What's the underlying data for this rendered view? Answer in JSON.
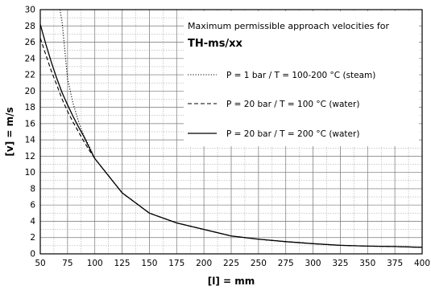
{
  "chart_data": {
    "type": "line",
    "xlabel": "[l] = mm",
    "ylabel": "[v] = m/s",
    "xlim": [
      50,
      400
    ],
    "ylim": [
      0,
      30
    ],
    "x_ticks": [
      50,
      75,
      100,
      125,
      150,
      175,
      200,
      225,
      250,
      275,
      300,
      325,
      350,
      375,
      400
    ],
    "y_ticks": [
      0,
      2,
      4,
      6,
      8,
      10,
      12,
      14,
      16,
      18,
      20,
      22,
      24,
      26,
      28,
      30
    ],
    "grid": true,
    "legend": {
      "placement": "top-right",
      "title": "Maximum permissible approach velocities for",
      "subtitle": "TH-ms/xx"
    },
    "series": [
      {
        "name": "P =    1 bar  / T = 100-200 °C  (steam)",
        "style": "dotted",
        "x": [
          68,
          70,
          75,
          80,
          85,
          90,
          95,
          100,
          125,
          150,
          175,
          200,
          225,
          250,
          275,
          300,
          325,
          350,
          375,
          400
        ],
        "y": [
          30,
          28.5,
          21.5,
          18.5,
          16.3,
          14.5,
          13.2,
          11.7,
          7.5,
          5.0,
          3.8,
          3.0,
          2.2,
          1.8,
          1.5,
          1.25,
          1.05,
          0.95,
          0.9,
          0.8
        ]
      },
      {
        "name": "P = 20 bar  / T = 100 °C  (water)",
        "style": "dashed",
        "x": [
          50,
          55,
          60,
          65,
          70,
          75,
          80,
          85,
          90,
          95,
          100,
          125,
          150,
          175,
          200,
          225,
          250,
          275,
          300,
          325,
          350,
          375,
          400
        ],
        "y": [
          26.5,
          24.5,
          22.5,
          20.8,
          19.0,
          17.5,
          16.2,
          15.0,
          13.8,
          12.7,
          11.7,
          7.5,
          5.0,
          3.8,
          3.0,
          2.2,
          1.8,
          1.5,
          1.25,
          1.05,
          0.95,
          0.9,
          0.8
        ]
      },
      {
        "name": "P = 20 bar  / T = 200 °C  (water)",
        "style": "solid",
        "x": [
          50,
          55,
          60,
          65,
          70,
          75,
          80,
          85,
          90,
          95,
          100,
          125,
          150,
          175,
          200,
          225,
          250,
          275,
          300,
          325,
          350,
          375,
          400
        ],
        "y": [
          28.2,
          25.8,
          23.6,
          21.6,
          19.8,
          18.3,
          16.9,
          15.6,
          14.4,
          13.0,
          11.7,
          7.5,
          5.0,
          3.8,
          3.0,
          2.2,
          1.8,
          1.5,
          1.25,
          1.05,
          0.95,
          0.9,
          0.8
        ]
      }
    ]
  }
}
